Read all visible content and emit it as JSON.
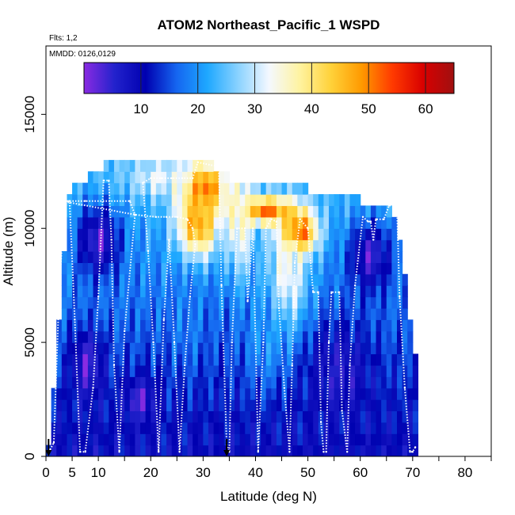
{
  "chart_data": {
    "type": "heatmap",
    "title": "ATOM2 Northeast_Pacific_1 WSPD",
    "subtitle_flights": "Flts: 1,2",
    "subtitle_dates": "MMDD: 0126,0129",
    "xlabel": "Latitude (deg N)",
    "ylabel": "Altitude (m)",
    "xlim": [
      0,
      85
    ],
    "ylim": [
      0,
      18000
    ],
    "x_ticks": [
      0,
      5,
      10,
      20,
      30,
      40,
      50,
      60,
      70,
      80
    ],
    "x_minor_ticks": [
      15,
      25,
      35,
      45,
      55,
      65,
      75,
      85
    ],
    "y_ticks": [
      0,
      5000,
      10000,
      15000
    ],
    "colorbar": {
      "min": 0,
      "max": 65,
      "ticks": [
        10,
        20,
        30,
        40,
        50,
        60
      ],
      "stops": [
        "#8a2be2",
        "#2222cc",
        "#0000b0",
        "#1565f0",
        "#1ea8ff",
        "#8ad2ff",
        "#f4f8ff",
        "#fff3a0",
        "#ffd23a",
        "#ff9a00",
        "#ff3a00",
        "#d80000",
        "#a01010"
      ]
    },
    "envelope": [
      {
        "lat": 0.5,
        "top": 500
      },
      {
        "lat": 1.5,
        "top": 3000
      },
      {
        "lat": 2.5,
        "top": 6000
      },
      {
        "lat": 3.5,
        "top": 9000
      },
      {
        "lat": 4.5,
        "top": 11500
      },
      {
        "lat": 7.5,
        "top": 12000
      },
      {
        "lat": 10.5,
        "top": 12500
      },
      {
        "lat": 20,
        "top": 13000
      },
      {
        "lat": 30,
        "top": 13000
      },
      {
        "lat": 35,
        "top": 12000
      },
      {
        "lat": 40,
        "top": 12000
      },
      {
        "lat": 50,
        "top": 11500
      },
      {
        "lat": 60,
        "top": 11000
      },
      {
        "lat": 66,
        "top": 11000
      },
      {
        "lat": 67,
        "top": 10000
      },
      {
        "lat": 68.5,
        "top": 8000
      },
      {
        "lat": 69.5,
        "top": 6000
      },
      {
        "lat": 70.5,
        "top": 4500
      },
      {
        "lat": 71,
        "top": 2000
      }
    ],
    "wind_features": [
      {
        "lat": 10,
        "alt": 9500,
        "value": 3,
        "rl": 4,
        "ra": 1500
      },
      {
        "lat": 8,
        "alt": 4000,
        "value": 3,
        "rl": 3,
        "ra": 1500
      },
      {
        "lat": 18,
        "alt": 2500,
        "value": 3,
        "rl": 3,
        "ra": 1000
      },
      {
        "lat": 30,
        "alt": 11800,
        "value": 56,
        "rl": 4,
        "ra": 1000
      },
      {
        "lat": 29,
        "alt": 10200,
        "value": 48,
        "rl": 4,
        "ra": 1500
      },
      {
        "lat": 42,
        "alt": 10800,
        "value": 54,
        "rl": 6,
        "ra": 600
      },
      {
        "lat": 48,
        "alt": 9800,
        "value": 62,
        "rl": 3.5,
        "ra": 900
      },
      {
        "lat": 46,
        "alt": 7800,
        "value": 34,
        "rl": 4,
        "ra": 2500
      },
      {
        "lat": 37,
        "alt": 10500,
        "value": 36,
        "rl": 2.5,
        "ra": 2500
      },
      {
        "lat": 22,
        "alt": 12200,
        "value": 32,
        "rl": 6,
        "ra": 800
      },
      {
        "lat": 42,
        "alt": 5200,
        "value": 20,
        "rl": 4,
        "ra": 2000
      },
      {
        "lat": 27,
        "alt": 6000,
        "value": 18,
        "rl": 3,
        "ra": 2000
      },
      {
        "lat": 56,
        "alt": 3800,
        "value": 6,
        "rl": 6,
        "ra": 2000
      },
      {
        "lat": 62,
        "alt": 8800,
        "value": 4,
        "rl": 4,
        "ra": 1500
      }
    ],
    "flight_track": [
      [
        0.8,
        300
      ],
      [
        1.5,
        600
      ],
      [
        2.5,
        7000
      ],
      [
        3.5,
        11200
      ],
      [
        7.5,
        11200
      ],
      [
        16,
        11200
      ],
      [
        17,
        10600
      ],
      [
        15,
        5500
      ],
      [
        14,
        200
      ],
      [
        13,
        4000
      ],
      [
        12.5,
        9500
      ],
      [
        12,
        12100
      ],
      [
        11,
        12100
      ],
      [
        10,
        7000
      ],
      [
        9,
        3000
      ],
      [
        7.5,
        200
      ],
      [
        6.5,
        200
      ],
      [
        5.5,
        6000
      ],
      [
        4.5,
        11200
      ],
      [
        3,
        11200
      ],
      [
        17,
        10600
      ],
      [
        21,
        10500
      ],
      [
        23,
        10500
      ],
      [
        25,
        10500
      ],
      [
        27,
        10400
      ],
      [
        28,
        10000
      ],
      [
        28.5,
        9300
      ],
      [
        27.5,
        7000
      ],
      [
        26.5,
        4000
      ],
      [
        25.5,
        200
      ],
      [
        24.5,
        5000
      ],
      [
        23.5,
        9500
      ],
      [
        22.5,
        6000
      ],
      [
        21.5,
        200
      ],
      [
        20.5,
        5000
      ],
      [
        19.5,
        9000
      ],
      [
        18.5,
        12000
      ],
      [
        20,
        12200
      ],
      [
        22,
        12200
      ],
      [
        24,
        12200
      ],
      [
        26,
        12200
      ],
      [
        28,
        12200
      ],
      [
        29,
        12900
      ],
      [
        33,
        12700
      ],
      [
        33.5,
        7500
      ],
      [
        34.5,
        500
      ],
      [
        35,
        200
      ],
      [
        35.5,
        5000
      ],
      [
        36.5,
        10000
      ],
      [
        38,
        10000
      ],
      [
        38.5,
        6800
      ],
      [
        39.5,
        10000
      ],
      [
        40.5,
        200
      ],
      [
        41.5,
        5000
      ],
      [
        42,
        10000
      ],
      [
        43,
        10400
      ],
      [
        44,
        10300
      ],
      [
        44.5,
        6500
      ],
      [
        45.5,
        3000
      ],
      [
        46.5,
        200
      ],
      [
        47,
        4000
      ],
      [
        47.5,
        8500
      ],
      [
        48.5,
        10400
      ],
      [
        50,
        10000
      ],
      [
        51,
        7200
      ],
      [
        52,
        7200
      ],
      [
        52.5,
        1500
      ],
      [
        53,
        200
      ],
      [
        53.5,
        200
      ],
      [
        54,
        5000
      ],
      [
        54.5,
        7200
      ],
      [
        56,
        7200
      ],
      [
        56.5,
        2000
      ],
      [
        57.5,
        200
      ],
      [
        58,
        4000
      ],
      [
        59,
        7500
      ],
      [
        60.5,
        10500
      ],
      [
        61.5,
        10300
      ],
      [
        62,
        10300
      ],
      [
        62.5,
        9500
      ],
      [
        63,
        10400
      ],
      [
        64.5,
        10400
      ],
      [
        65.5,
        11000
      ],
      [
        67,
        11000
      ],
      [
        67.5,
        7000
      ],
      [
        68.5,
        3000
      ],
      [
        69.5,
        200
      ],
      [
        70,
        200
      ],
      [
        70.5,
        400
      ]
    ],
    "ground_markers": [
      {
        "lat": 0.5
      },
      {
        "lat": 34.5
      }
    ]
  }
}
